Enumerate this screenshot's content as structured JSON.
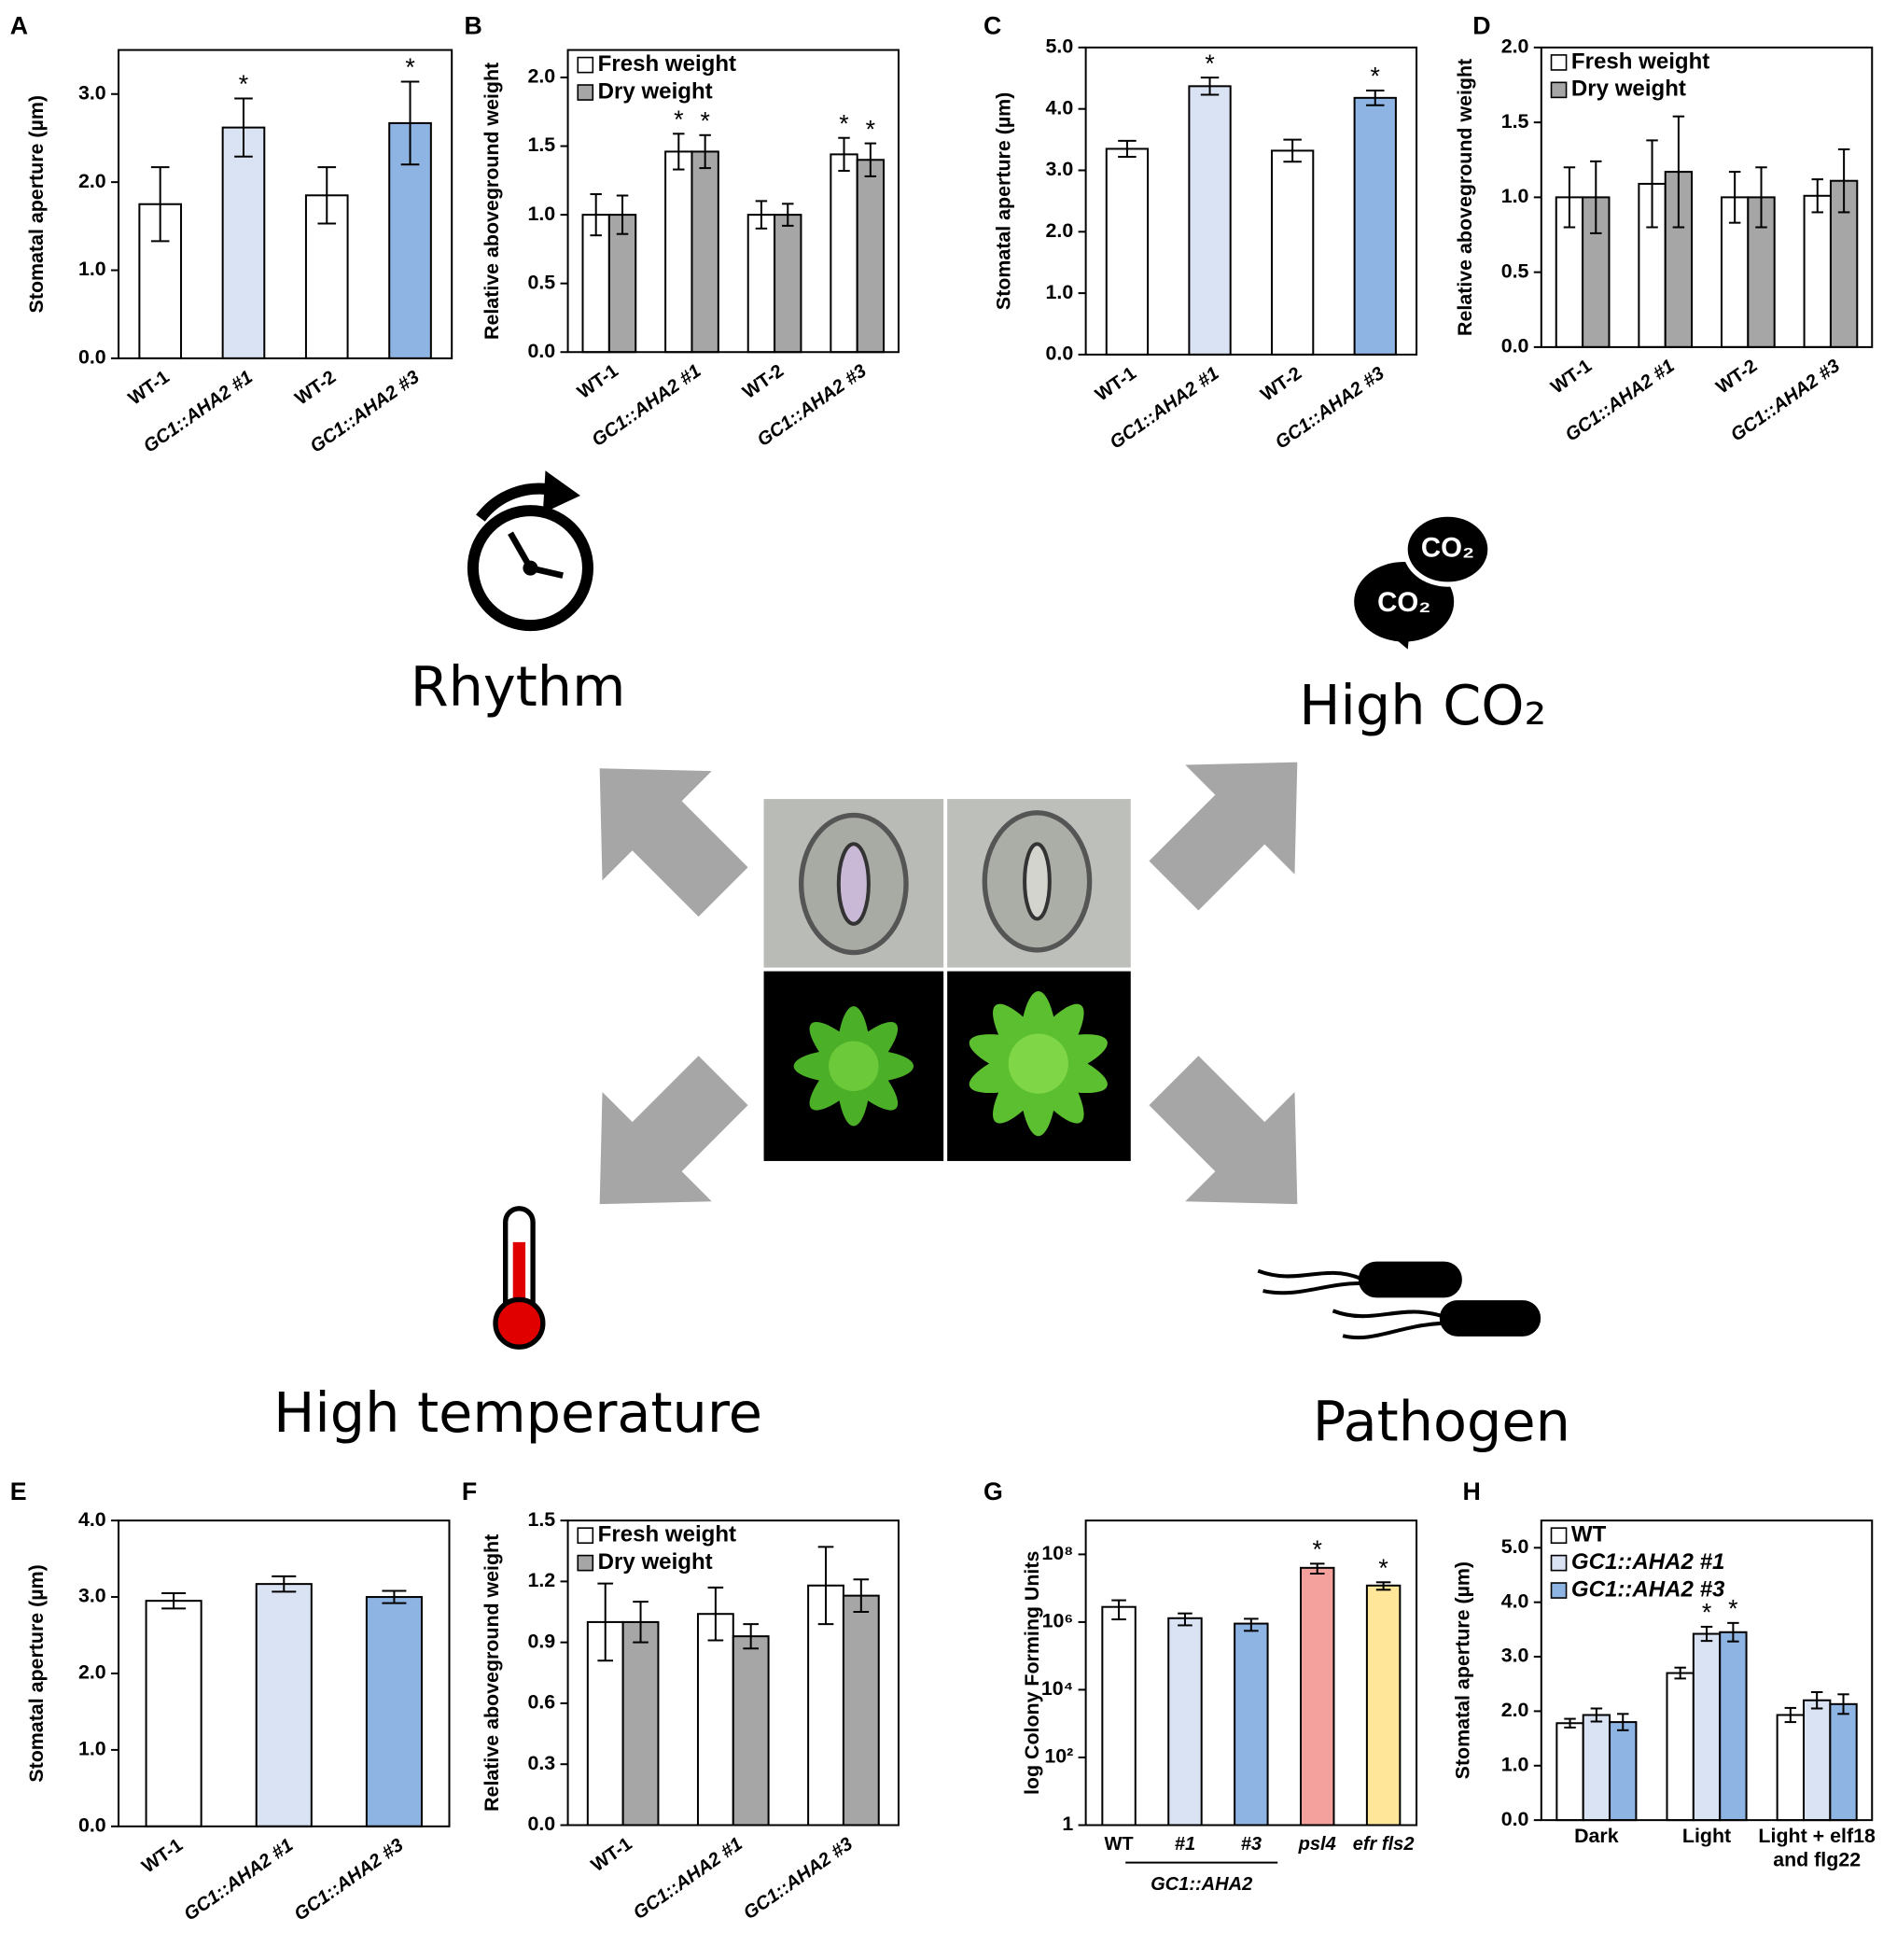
{
  "chart_data": [
    {
      "type": "bar",
      "panel": "A",
      "ylabel": "Stomatal aperture (µm)",
      "categories": [
        "WT-1",
        "GC1::AHA2 #1",
        "WT-2",
        "GC1::AHA2 #3"
      ],
      "values": [
        1.75,
        2.62,
        1.85,
        2.67
      ],
      "errors": [
        0.42,
        0.33,
        0.32,
        0.47
      ],
      "annotations": [
        null,
        "*",
        null,
        "*"
      ],
      "colors": [
        "#ffffff",
        "#dae3f3",
        "#ffffff",
        "#8db4e2"
      ],
      "ylim": [
        0,
        3.5
      ],
      "yticks": [
        {
          "value": 0,
          "label": "0.0"
        },
        {
          "value": 1,
          "label": "1.0"
        },
        {
          "value": 2,
          "label": "2.0"
        },
        {
          "value": 3,
          "label": "3.0"
        }
      ]
    },
    {
      "type": "bar",
      "panel": "B",
      "ylabel": "Relative aboveground weight",
      "categories": [
        "WT-1",
        "GC1::AHA2 #1",
        "WT-2",
        "GC1::AHA2 #3"
      ],
      "series": [
        {
          "name": "Fresh weight",
          "color": "#ffffff",
          "values": [
            1.0,
            1.46,
            1.0,
            1.44
          ],
          "errors": [
            0.15,
            0.13,
            0.1,
            0.12
          ],
          "annotations": [
            null,
            "*",
            null,
            "*"
          ]
        },
        {
          "name": "Dry weight",
          "color": "#a6a6a6",
          "values": [
            1.0,
            1.46,
            1.0,
            1.4
          ],
          "errors": [
            0.14,
            0.12,
            0.08,
            0.12
          ],
          "annotations": [
            null,
            "*",
            null,
            "*"
          ]
        }
      ],
      "ylim": [
        0,
        2.2
      ],
      "yticks": [
        {
          "value": 0,
          "label": "0.0"
        },
        {
          "value": 0.5,
          "label": "0.5"
        },
        {
          "value": 1,
          "label": "1.0"
        },
        {
          "value": 1.5,
          "label": "1.5"
        },
        {
          "value": 2,
          "label": "2.0"
        }
      ],
      "legend": "upper left"
    },
    {
      "type": "bar",
      "panel": "C",
      "ylabel": "Stomatal aperture (µm)",
      "categories": [
        "WT-1",
        "GC1::AHA2 #1",
        "WT-2",
        "GC1::AHA2 #3"
      ],
      "values": [
        3.35,
        4.37,
        3.32,
        4.18
      ],
      "errors": [
        0.13,
        0.14,
        0.18,
        0.12
      ],
      "annotations": [
        null,
        "*",
        null,
        "*"
      ],
      "colors": [
        "#ffffff",
        "#dae3f3",
        "#ffffff",
        "#8db4e2"
      ],
      "ylim": [
        0,
        5
      ],
      "yticks": [
        {
          "value": 0,
          "label": "0.0"
        },
        {
          "value": 1,
          "label": "1.0"
        },
        {
          "value": 2,
          "label": "2.0"
        },
        {
          "value": 3,
          "label": "3.0"
        },
        {
          "value": 4,
          "label": "4.0"
        },
        {
          "value": 5,
          "label": "5.0"
        }
      ]
    },
    {
      "type": "bar",
      "panel": "D",
      "ylabel": "Relative aboveground weight",
      "categories": [
        "WT-1",
        "GC1::AHA2 #1",
        "WT-2",
        "GC1::AHA2 #3"
      ],
      "series": [
        {
          "name": "Fresh weight",
          "color": "#ffffff",
          "values": [
            1.0,
            1.09,
            1.0,
            1.01
          ],
          "errors": [
            0.2,
            0.29,
            0.17,
            0.11
          ]
        },
        {
          "name": "Dry weight",
          "color": "#a6a6a6",
          "values": [
            1.0,
            1.17,
            1.0,
            1.11
          ],
          "errors": [
            0.24,
            0.37,
            0.2,
            0.21
          ]
        }
      ],
      "ylim": [
        0,
        2
      ],
      "yticks": [
        {
          "value": 0,
          "label": "0.0"
        },
        {
          "value": 0.5,
          "label": "0.5"
        },
        {
          "value": 1,
          "label": "1.0"
        },
        {
          "value": 1.5,
          "label": "1.5"
        },
        {
          "value": 2,
          "label": "2.0"
        }
      ],
      "legend": "upper left"
    },
    {
      "type": "bar",
      "panel": "E",
      "ylabel": "Stomatal aperture (µm)",
      "categories": [
        "WT-1",
        "GC1::AHA2 #1",
        "GC1::AHA2 #3"
      ],
      "values": [
        2.95,
        3.17,
        3.0
      ],
      "errors": [
        0.1,
        0.1,
        0.08
      ],
      "colors": [
        "#ffffff",
        "#dae3f3",
        "#8db4e2"
      ],
      "ylim": [
        0,
        4
      ],
      "yticks": [
        {
          "value": 0,
          "label": "0.0"
        },
        {
          "value": 1,
          "label": "1.0"
        },
        {
          "value": 2,
          "label": "2.0"
        },
        {
          "value": 3,
          "label": "3.0"
        },
        {
          "value": 4,
          "label": "4.0"
        }
      ]
    },
    {
      "type": "bar",
      "panel": "F",
      "ylabel": "Relative aboveground weight",
      "categories": [
        "WT-1",
        "GC1::AHA2 #1",
        "GC1::AHA2 #3"
      ],
      "series": [
        {
          "name": "Fresh weight",
          "color": "#ffffff",
          "values": [
            1.0,
            1.04,
            1.18
          ],
          "errors": [
            0.19,
            0.13,
            0.19
          ]
        },
        {
          "name": "Dry weight",
          "color": "#a6a6a6",
          "values": [
            1.0,
            0.93,
            1.13
          ],
          "errors": [
            0.1,
            0.06,
            0.08
          ]
        }
      ],
      "ylim": [
        0,
        1.5
      ],
      "yticks": [
        {
          "value": 0,
          "label": "0.0"
        },
        {
          "value": 0.3,
          "label": "0.3"
        },
        {
          "value": 0.6,
          "label": "0.6"
        },
        {
          "value": 0.9,
          "label": "0.9"
        },
        {
          "value": 1.2,
          "label": "1.2"
        },
        {
          "value": 1.5,
          "label": "1.5"
        }
      ],
      "legend": "upper left"
    },
    {
      "type": "bar",
      "panel": "G",
      "ylabel": "log Colony Forming Units",
      "yscale": "log",
      "categories": [
        "WT",
        "#1",
        "#3",
        "psl4",
        "efr fls2"
      ],
      "group_label": "GC1::AHA2",
      "values": [
        2800000,
        1300000,
        900000,
        40000000,
        12000000
      ],
      "errors": [
        1600000,
        500000,
        350000,
        13000000,
        3000000
      ],
      "annotations": [
        null,
        null,
        null,
        "*",
        "*"
      ],
      "colors": [
        "#ffffff",
        "#dae3f3",
        "#8db4e2",
        "#f4a09c",
        "#ffe699"
      ],
      "ylim": [
        1,
        1000000000
      ],
      "yticks": [
        1,
        {
          "value": 100,
          "label": "10²"
        },
        {
          "value": 10000,
          "label": "10⁴"
        },
        {
          "value": 1000000,
          "label": "10⁶"
        },
        {
          "value": 100000000,
          "label": "10⁸"
        }
      ]
    },
    {
      "type": "bar",
      "panel": "H",
      "ylabel": "Stomatal aperture (µm)",
      "categories": [
        "Dark",
        "Light",
        "Light + elf18 and flg22"
      ],
      "series": [
        {
          "name": "WT",
          "color": "#ffffff",
          "values": [
            1.78,
            2.7,
            1.93
          ],
          "errors": [
            0.08,
            0.1,
            0.13
          ]
        },
        {
          "name": "GC1::AHA2 #1",
          "color": "#dae3f3",
          "values": [
            1.93,
            3.42,
            2.2
          ],
          "errors": [
            0.12,
            0.13,
            0.15
          ],
          "annotations": [
            null,
            "*",
            null
          ]
        },
        {
          "name": "GC1::AHA2 #3",
          "color": "#8db4e2",
          "values": [
            1.8,
            3.45,
            2.13
          ],
          "errors": [
            0.15,
            0.17,
            0.18
          ],
          "annotations": [
            null,
            "*",
            null
          ]
        }
      ],
      "ylim": [
        0,
        5.5
      ],
      "yticks": [
        {
          "value": 0,
          "label": "0.0"
        },
        {
          "value": 1,
          "label": "1.0"
        },
        {
          "value": 2,
          "label": "2.0"
        },
        {
          "value": 3,
          "label": "3.0"
        },
        {
          "value": 4,
          "label": "4.0"
        },
        {
          "value": 5,
          "label": "5.0"
        }
      ],
      "legend": "upper left"
    }
  ],
  "diagram_labels": [
    "Rhythm",
    "High CO₂",
    "High temperature",
    "Pathogen"
  ],
  "icon_labels": [
    "CO₂",
    "CO₂"
  ]
}
